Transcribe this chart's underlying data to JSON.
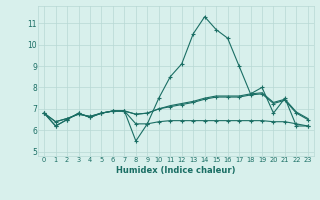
{
  "xlabel": "Humidex (Indice chaleur)",
  "background_color": "#d8f0ec",
  "grid_color": "#b8d8d4",
  "line_color": "#1a6e64",
  "xlim": [
    -0.5,
    23.5
  ],
  "ylim": [
    4.8,
    11.8
  ],
  "yticks": [
    5,
    6,
    7,
    8,
    9,
    10,
    11
  ],
  "xticks": [
    0,
    1,
    2,
    3,
    4,
    5,
    6,
    7,
    8,
    9,
    10,
    11,
    12,
    13,
    14,
    15,
    16,
    17,
    18,
    19,
    20,
    21,
    22,
    23
  ],
  "series": [
    [
      6.8,
      6.2,
      6.5,
      6.8,
      6.6,
      6.8,
      6.9,
      6.9,
      5.5,
      6.3,
      7.5,
      8.5,
      9.1,
      10.5,
      11.3,
      10.7,
      10.3,
      9.0,
      7.7,
      8.0,
      6.8,
      7.5,
      6.2,
      6.2
    ],
    [
      6.8,
      6.2,
      6.5,
      6.8,
      6.6,
      6.8,
      6.9,
      6.9,
      6.3,
      6.3,
      6.4,
      6.45,
      6.45,
      6.45,
      6.45,
      6.45,
      6.45,
      6.45,
      6.45,
      6.45,
      6.4,
      6.4,
      6.3,
      6.2
    ],
    [
      6.8,
      6.4,
      6.55,
      6.75,
      6.65,
      6.8,
      6.9,
      6.9,
      6.75,
      6.8,
      7.0,
      7.1,
      7.2,
      7.3,
      7.45,
      7.55,
      7.55,
      7.55,
      7.65,
      7.7,
      7.25,
      7.4,
      6.8,
      6.5
    ],
    [
      6.8,
      6.4,
      6.55,
      6.75,
      6.65,
      6.8,
      6.9,
      6.9,
      6.75,
      6.8,
      7.0,
      7.15,
      7.25,
      7.35,
      7.5,
      7.6,
      7.6,
      7.6,
      7.7,
      7.75,
      7.3,
      7.45,
      6.85,
      6.55
    ]
  ]
}
